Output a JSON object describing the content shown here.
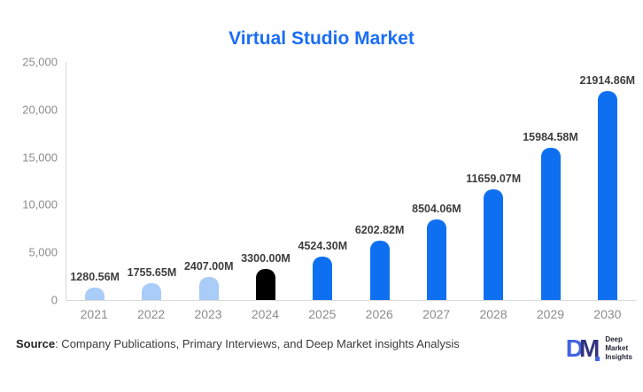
{
  "title": "Virtual Studio Market",
  "source": {
    "label": "Source",
    "text": ": Company Publications, Primary Interviews, and Deep Market insights Analysis"
  },
  "logo": {
    "letter_d": "D",
    "letter_m": "M",
    "lines": [
      "Deep",
      "Market",
      "Insights"
    ],
    "d_color": "#4065e3",
    "m_color": "#32327e"
  },
  "colors": {
    "title_blue": "#1b6ef5",
    "historical_bar": "#a9ccf8",
    "base_year_bar": "#000000",
    "forecast_bar": "#0e70f0",
    "tick_gray": "#8c8c8c",
    "axis_gray": "#d8d8d8",
    "value_label": "#3d3d3d"
  },
  "chart_data": {
    "type": "bar",
    "title": "Virtual Studio Market",
    "categories": [
      "2021",
      "2022",
      "2023",
      "2024",
      "2025",
      "2026",
      "2027",
      "2028",
      "2029",
      "2030"
    ],
    "values": [
      1280.56,
      1755.65,
      2407.0,
      3300.0,
      4524.3,
      6202.82,
      8504.06,
      11659.07,
      15984.58,
      21914.86
    ],
    "data_labels": [
      "1280.56M",
      "1755.65M",
      "2407.00M",
      "3300.00M",
      "4524.30M",
      "6202.82M",
      "8504.06M",
      "11659.07M",
      "15984.58M",
      "21914.86M"
    ],
    "bar_colors": [
      "#a9ccf8",
      "#a9ccf8",
      "#a9ccf8",
      "#000000",
      "#0e70f0",
      "#0e70f0",
      "#0e70f0",
      "#0e70f0",
      "#0e70f0",
      "#0e70f0"
    ],
    "xlabel": "",
    "ylabel": "",
    "ylim": [
      0,
      25000
    ],
    "yticks": [
      "0",
      "5,000",
      "10,000",
      "15,000",
      "20,000",
      "25,000"
    ],
    "grid": false,
    "legend": "none",
    "unit": "M (USD Million)"
  }
}
